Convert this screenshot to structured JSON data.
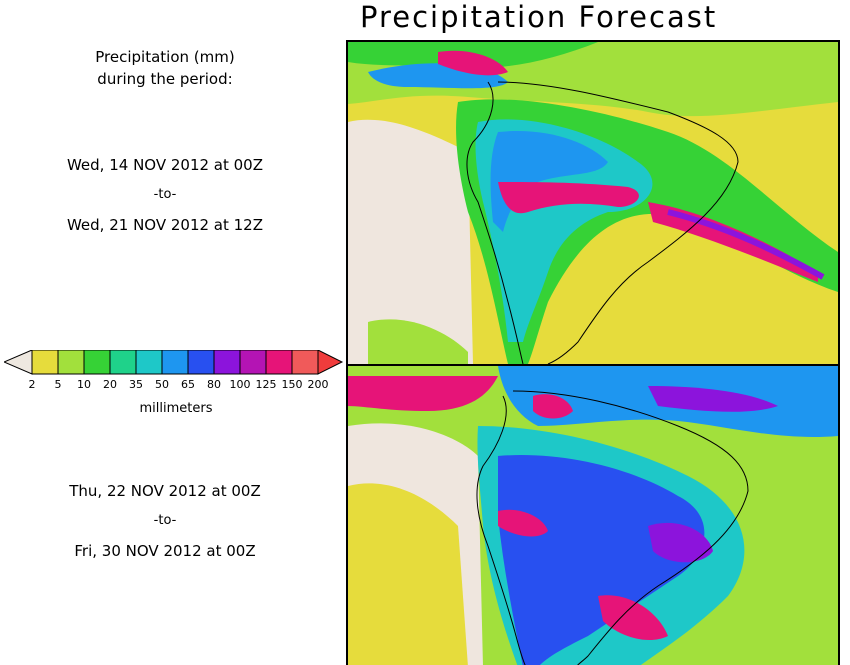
{
  "title": "Precipitation Forecast",
  "period_header": {
    "line1": "Precipitation (mm)",
    "line2": "during the period:"
  },
  "period1": {
    "start": "Wed, 14 NOV 2012 at 00Z",
    "sep": "-to-",
    "end": "Wed, 21 NOV 2012 at 12Z"
  },
  "period2": {
    "start": "Thu, 22 NOV 2012 at 00Z",
    "sep": "-to-",
    "end": "Fri, 30 NOV 2012 at 00Z"
  },
  "colorbar": {
    "units": "millimeters",
    "ticks": [
      "2",
      "5",
      "10",
      "20",
      "35",
      "50",
      "65",
      "80",
      "100",
      "125",
      "150",
      "200"
    ],
    "colors": [
      "#e6dc3c",
      "#a2e03c",
      "#36d236",
      "#1fd28a",
      "#1ec8c8",
      "#1e96f0",
      "#2850f0",
      "#8c14dc",
      "#b414b4",
      "#e61478",
      "#f05a5a"
    ],
    "under_color": "#eee8e0",
    "over_color": "#f03c3c"
  },
  "palette": {
    "land_dry": "#efe6de",
    "ocean_light": "#e6dc3c",
    "low": "#a2e03c"
  }
}
